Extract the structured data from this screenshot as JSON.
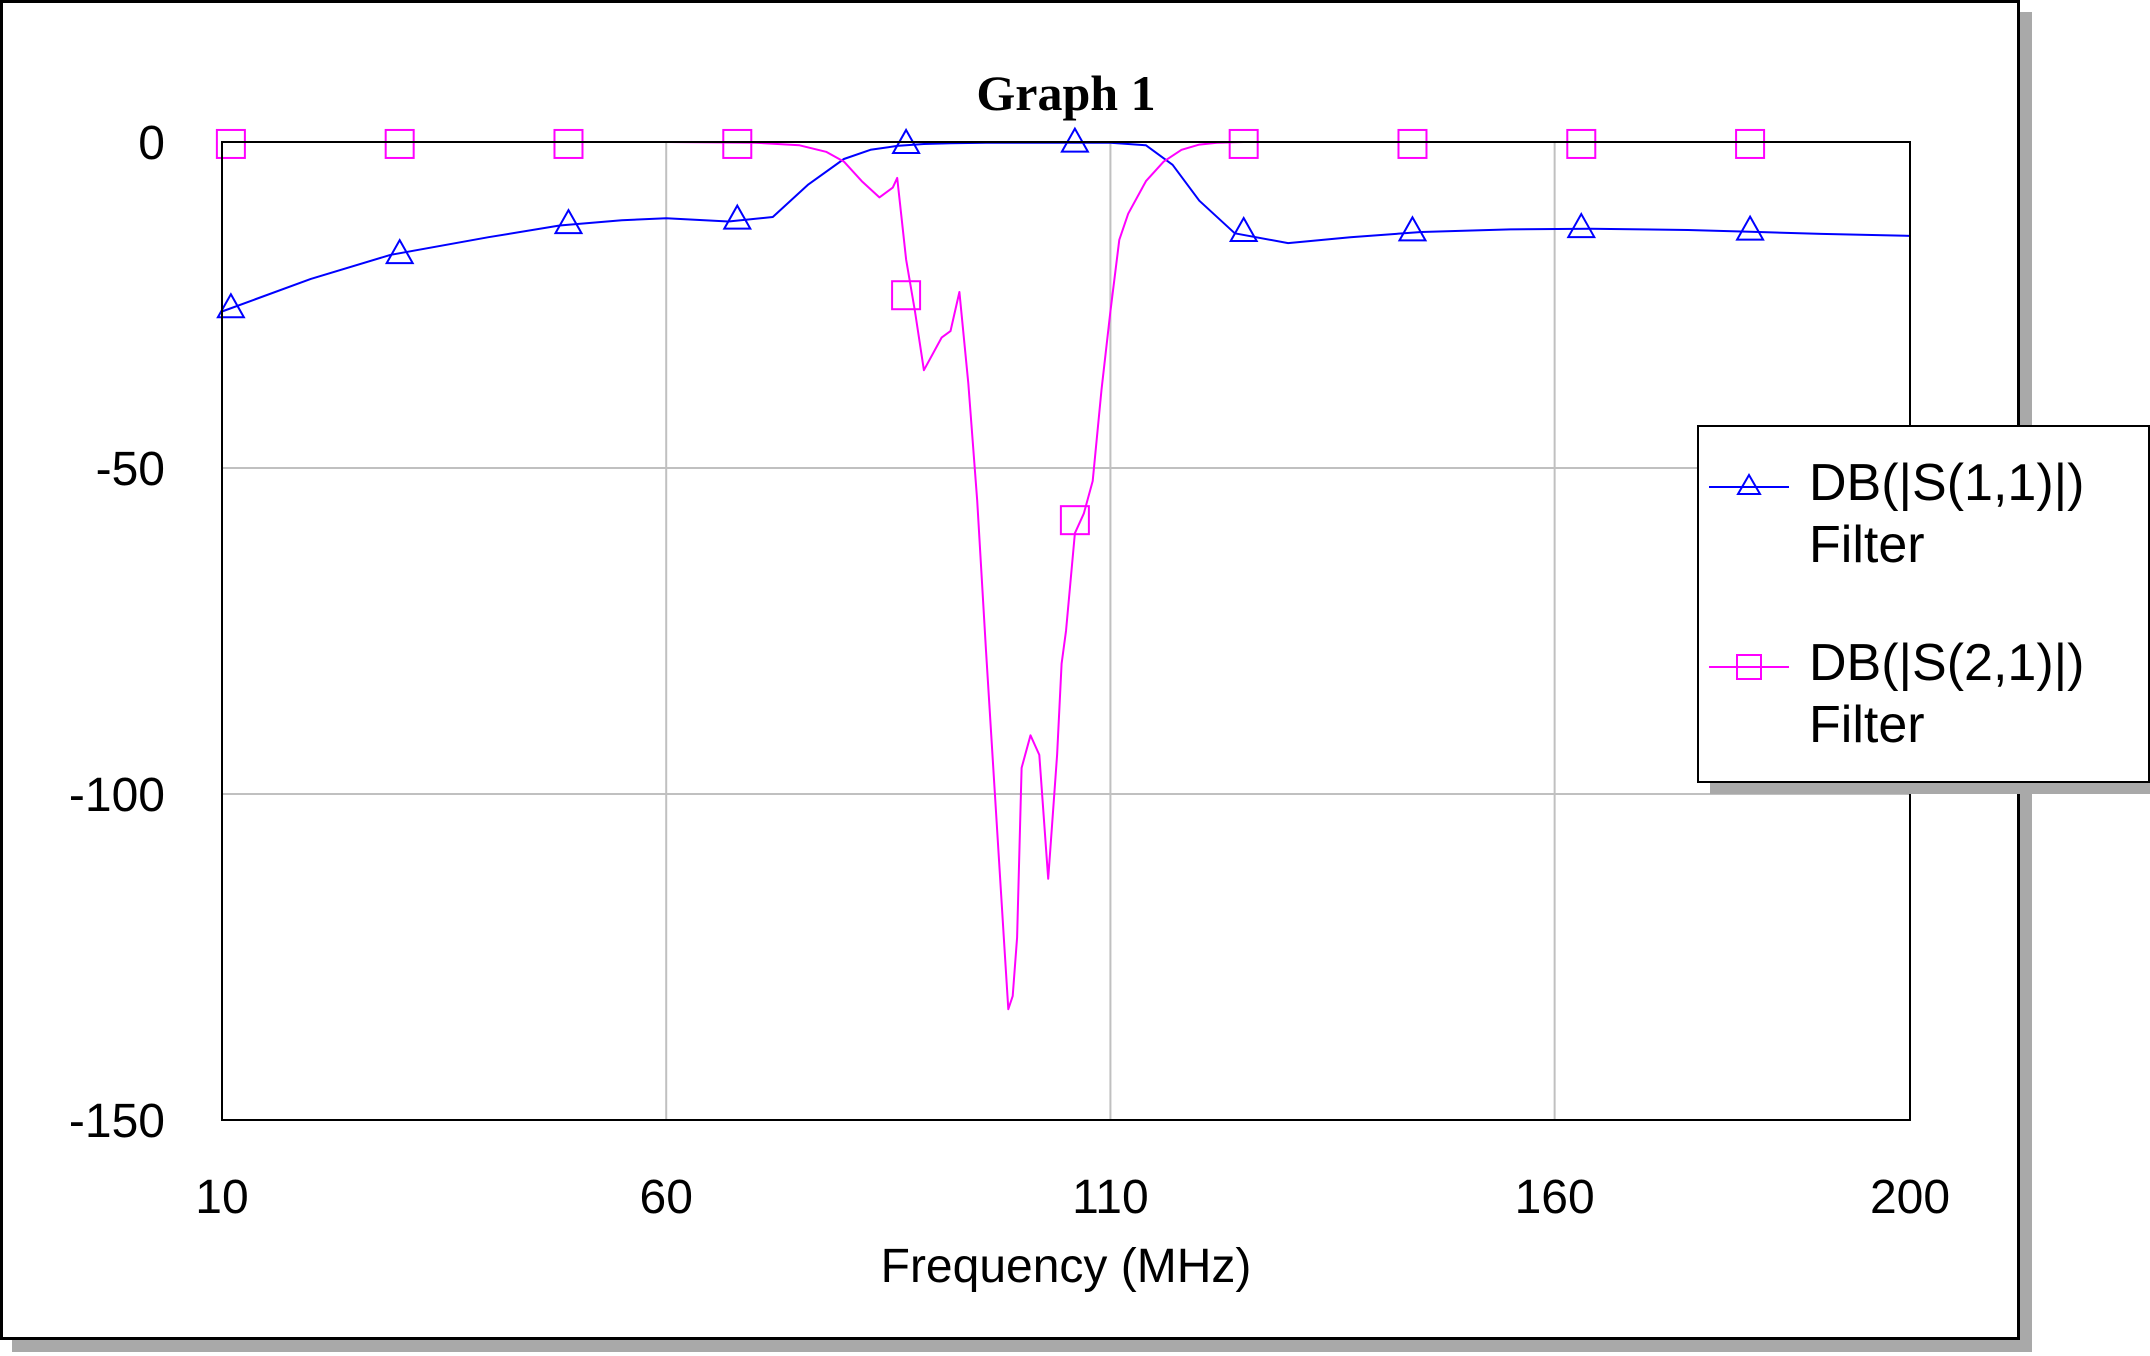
{
  "chart_data": {
    "type": "line",
    "title": "Graph 1",
    "xlabel": "Frequency (MHz)",
    "ylabel": "",
    "xlim": [
      10,
      200
    ],
    "ylim": [
      -150,
      0
    ],
    "xticks": [
      10,
      60,
      110,
      160,
      200
    ],
    "yticks": [
      0,
      -50,
      -100,
      -150
    ],
    "grid": true,
    "legend_position": "right",
    "series": [
      {
        "name": "DB(|S(1,1)|) Filter",
        "label_line1": "DB(|S(1,1)|)",
        "label_line2": "Filter",
        "color": "#0000ff",
        "marker": "triangle",
        "x": [
          10,
          20,
          29,
          40,
          48,
          55,
          60,
          67,
          72,
          76,
          80,
          83,
          86,
          89,
          92,
          96,
          100,
          105,
          110,
          114,
          117,
          120,
          124,
          130,
          137,
          145,
          155,
          164,
          175,
          183,
          190,
          200
        ],
        "y": [
          -26,
          -21,
          -17.3,
          -14.6,
          -12.8,
          -12,
          -11.7,
          -12.2,
          -11.5,
          -6.5,
          -2.6,
          -1.2,
          -0.6,
          -0.3,
          -0.2,
          -0.1,
          -0.1,
          -0.1,
          -0.1,
          -0.5,
          -3.5,
          -9,
          -14,
          -15.5,
          -14.6,
          -13.8,
          -13.4,
          -13.3,
          -13.5,
          -13.8,
          -14.1,
          -14.4
        ],
        "marker_x": [
          11,
          30,
          49,
          68,
          87,
          106,
          125,
          144,
          163,
          182
        ],
        "marker_y": [
          -25.5,
          -17.2,
          -12.6,
          -11.9,
          -0.3,
          -0.1,
          -13.8,
          -13.7,
          -13.2,
          -13.6
        ]
      },
      {
        "name": "DB(|S(2,1)|) Filter",
        "label_line1": "DB(|S(2,1)|)",
        "label_line2": "Filter",
        "color": "#ff00ff",
        "marker": "square",
        "x": [
          10,
          40,
          60,
          70,
          75,
          78,
          80,
          82,
          84,
          85.5,
          86,
          87,
          88,
          89,
          91,
          92,
          93,
          94,
          95,
          96,
          97,
          98,
          98.5,
          99,
          99.5,
          100,
          101,
          102,
          103,
          104,
          104.5,
          105,
          106,
          107,
          108,
          109,
          110,
          111,
          112,
          114,
          116,
          118,
          120,
          122,
          125,
          140,
          160,
          200
        ],
        "y": [
          0,
          0,
          0,
          -0.1,
          -0.5,
          -1.5,
          -3,
          -6,
          -8.5,
          -7,
          -5.5,
          -18,
          -26,
          -35,
          -30,
          -29,
          -23,
          -37,
          -55,
          -78,
          -100,
          -122,
          -133,
          -131,
          -122,
          -96,
          -91,
          -94,
          -113,
          -94,
          -80,
          -75,
          -60,
          -57,
          -52,
          -38,
          -26,
          -15,
          -11,
          -6,
          -3,
          -1.2,
          -0.4,
          -0.1,
          0,
          0,
          0,
          0
        ],
        "marker_x": [
          11,
          30,
          49,
          68,
          87,
          106,
          125,
          144,
          163,
          182
        ],
        "marker_y": [
          -0.3,
          -0.3,
          -0.3,
          -0.3,
          -23.5,
          -58,
          -0.3,
          -0.3,
          -0.3,
          -0.3
        ]
      }
    ]
  }
}
